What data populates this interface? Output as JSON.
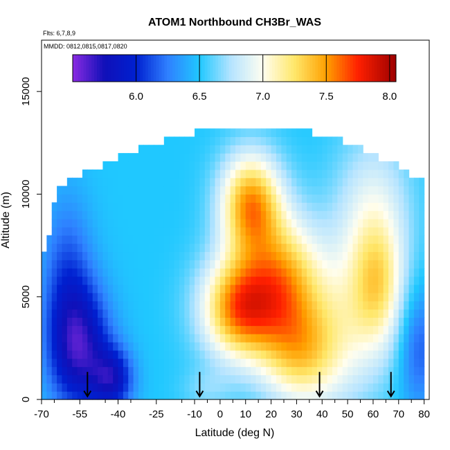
{
  "chart_data": {
    "type": "heatmap",
    "title": "ATOM1 Northbound CH3Br_WAS",
    "flights_note": "Flts: 6,7,8,9",
    "date_note": "MMDD: 0812,0815,0817,0820",
    "xlabel": "Latitude (deg N)",
    "ylabel": "Altitude (m)",
    "xlim": [
      -70,
      82
    ],
    "ylim": [
      0,
      17500
    ],
    "x_ticks": [
      -70,
      -55,
      -40,
      -25,
      -10,
      0,
      10,
      20,
      30,
      40,
      50,
      60,
      70,
      80
    ],
    "x_tick_labels": [
      "-70",
      "-55",
      "-40",
      "-25",
      "-10",
      "0",
      "10",
      "20",
      "30",
      "40",
      "50",
      "60",
      "70",
      "80"
    ],
    "y_ticks": [
      0,
      5000,
      10000,
      15000
    ],
    "y_tick_labels": [
      "0",
      "5000",
      "10000",
      "15000"
    ],
    "colorbar": {
      "range": [
        5.5,
        8.05
      ],
      "ticks": [
        6.0,
        6.5,
        7.0,
        7.5,
        8.0
      ],
      "tick_labels": [
        "6.0",
        "6.5",
        "7.0",
        "7.5",
        "8.0"
      ],
      "stops": [
        {
          "v": 5.5,
          "c": "#8a2be2"
        },
        {
          "v": 5.75,
          "c": "#1010b8"
        },
        {
          "v": 6.0,
          "c": "#0020d0"
        },
        {
          "v": 6.25,
          "c": "#2f80ff"
        },
        {
          "v": 6.5,
          "c": "#20c8ff"
        },
        {
          "v": 6.75,
          "c": "#b6e4ff"
        },
        {
          "v": 7.0,
          "c": "#fffef0"
        },
        {
          "v": 7.25,
          "c": "#ffe76a"
        },
        {
          "v": 7.5,
          "c": "#ffa000"
        },
        {
          "v": 7.75,
          "c": "#ff2000"
        },
        {
          "v": 8.05,
          "c": "#9b0000"
        }
      ]
    },
    "range_extent": [
      [
        0,
        -70,
        80
      ],
      [
        1000,
        -70,
        80
      ],
      [
        2000,
        -70,
        80
      ],
      [
        3000,
        -70,
        80
      ],
      [
        4000,
        -70,
        80
      ],
      [
        5000,
        -70,
        80
      ],
      [
        6000,
        -70,
        80
      ],
      [
        7000,
        -70,
        80
      ],
      [
        8000,
        -68,
        80
      ],
      [
        9000,
        -67,
        80
      ],
      [
        10000,
        -65,
        80
      ],
      [
        10500,
        -63,
        80
      ],
      [
        11500,
        -45,
        68
      ],
      [
        12000,
        -38,
        58
      ],
      [
        12500,
        -25,
        50
      ],
      [
        13000,
        -10,
        35
      ],
      [
        13200,
        -10,
        35
      ]
    ],
    "value_model": {
      "base": 6.5,
      "features": [
        {
          "lat": -55,
          "alt": 2500,
          "amp": -0.75,
          "slat": 12,
          "salt": 3000
        },
        {
          "lat": -42,
          "alt": 1000,
          "amp": -0.6,
          "slat": 8,
          "salt": 1500
        },
        {
          "lat": -60,
          "alt": 6000,
          "amp": -0.35,
          "slat": 10,
          "salt": 4000
        },
        {
          "lat": 8,
          "alt": 4500,
          "amp": 1.1,
          "slat": 15,
          "salt": 2500
        },
        {
          "lat": 25,
          "alt": 6000,
          "amp": 0.7,
          "slat": 14,
          "salt": 3000
        },
        {
          "lat": 12,
          "alt": 9500,
          "amp": 1.0,
          "slat": 12,
          "salt": 2500
        },
        {
          "lat": 30,
          "alt": 2200,
          "amp": 0.55,
          "slat": 15,
          "salt": 2500
        },
        {
          "lat": 45,
          "alt": 3500,
          "amp": 0.45,
          "slat": 20,
          "salt": 4000
        },
        {
          "lat": 60,
          "alt": 9000,
          "amp": 0.4,
          "slat": 15,
          "salt": 4000
        },
        {
          "lat": 62,
          "alt": 5500,
          "amp": 0.5,
          "slat": 10,
          "salt": 3000
        },
        {
          "lat": 78,
          "alt": 2500,
          "amp": -0.35,
          "slat": 8,
          "salt": 3000
        },
        {
          "lat": -5,
          "alt": 500,
          "amp": 0.15,
          "slat": 10,
          "salt": 1000
        }
      ]
    },
    "profile_markers": [
      -52,
      -8,
      39,
      67
    ]
  }
}
